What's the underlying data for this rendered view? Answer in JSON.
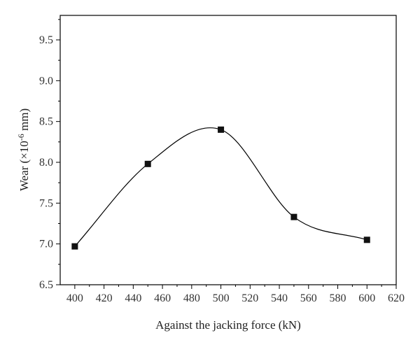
{
  "chart_data": {
    "type": "scatter",
    "title": "",
    "xlabel": "Against the jacking force (kN)",
    "ylabel_parts": {
      "base": "Wear (×10",
      "exp": "-6",
      "unit": " mm)"
    },
    "xlim": [
      390,
      620
    ],
    "ylim": [
      6.5,
      9.8
    ],
    "x_ticks": [
      400,
      420,
      440,
      460,
      480,
      500,
      520,
      540,
      560,
      580,
      600,
      620
    ],
    "y_ticks": [
      "6.5",
      "7.0",
      "7.5",
      "8.0",
      "8.5",
      "9.0",
      "9.5"
    ],
    "grid": false,
    "legend": "none",
    "series": [
      {
        "marker": "square",
        "x": [
          400,
          450,
          500,
          550,
          600
        ],
        "y": [
          6.97,
          7.98,
          8.4,
          7.33,
          7.05
        ],
        "smooth_fit": true,
        "color": "#111111"
      }
    ]
  }
}
